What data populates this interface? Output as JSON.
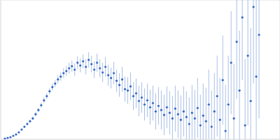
{
  "chart_data": {
    "type": "scatter",
    "color": "#3a6bc4",
    "grid": true,
    "tick_labels": false,
    "xlim": [
      0,
      0.4
    ],
    "ylim": [
      0,
      2
    ],
    "xticks": [
      0.115
    ],
    "yticks": [
      1
    ],
    "x": [
      0.006,
      0.01,
      0.014,
      0.018,
      0.022,
      0.026,
      0.03,
      0.034,
      0.038,
      0.042,
      0.046,
      0.05,
      0.054,
      0.058,
      0.062,
      0.066,
      0.07,
      0.074,
      0.078,
      0.082,
      0.086,
      0.09,
      0.094,
      0.098,
      0.102,
      0.106,
      0.11,
      0.114,
      0.118,
      0.122,
      0.126,
      0.13,
      0.134,
      0.138,
      0.142,
      0.146,
      0.15,
      0.154,
      0.158,
      0.162,
      0.166,
      0.17,
      0.174,
      0.178,
      0.182,
      0.186,
      0.19,
      0.194,
      0.198,
      0.202,
      0.206,
      0.21,
      0.214,
      0.218,
      0.222,
      0.226,
      0.23,
      0.234,
      0.238,
      0.242,
      0.246,
      0.25,
      0.254,
      0.258,
      0.262,
      0.266,
      0.27,
      0.274,
      0.278,
      0.282,
      0.286,
      0.29,
      0.294,
      0.298,
      0.302,
      0.306,
      0.31,
      0.314,
      0.318,
      0.322,
      0.326,
      0.33,
      0.334,
      0.338,
      0.342,
      0.346,
      0.35,
      0.354,
      0.358,
      0.362,
      0.366,
      0.37
    ],
    "values": [
      0.01,
      0.02,
      0.03,
      0.05,
      0.07,
      0.1,
      0.14,
      0.18,
      0.22,
      0.26,
      0.3,
      0.36,
      0.42,
      0.49,
      0.56,
      0.62,
      0.69,
      0.75,
      0.8,
      0.86,
      0.9,
      0.95,
      0.98,
      1.02,
      1.05,
      1.0,
      1.1,
      1.06,
      1.12,
      1.04,
      1.14,
      1.08,
      1.0,
      1.1,
      1.02,
      0.96,
      1.04,
      0.92,
      0.88,
      0.95,
      0.84,
      0.78,
      0.86,
      0.72,
      0.7,
      0.76,
      0.62,
      0.66,
      0.55,
      0.6,
      0.5,
      0.56,
      0.46,
      0.52,
      0.4,
      0.48,
      0.42,
      0.35,
      0.46,
      0.38,
      0.3,
      0.44,
      0.36,
      0.28,
      0.4,
      0.32,
      0.22,
      0.38,
      0.3,
      0.45,
      0.2,
      0.34,
      0.26,
      0.5,
      0.18,
      0.4,
      0.62,
      0.28,
      0.85,
      0.12,
      0.5,
      1.1,
      0.3,
      1.4,
      0.7,
      1.75,
      0.2,
      1.2,
      0.55,
      1.9,
      0.9,
      1.5
    ],
    "errors": [
      0.005,
      0.005,
      0.006,
      0.007,
      0.008,
      0.01,
      0.012,
      0.015,
      0.02,
      0.02,
      0.025,
      0.03,
      0.03,
      0.035,
      0.04,
      0.04,
      0.045,
      0.05,
      0.05,
      0.06,
      0.06,
      0.07,
      0.07,
      0.08,
      0.08,
      0.09,
      0.09,
      0.1,
      0.1,
      0.11,
      0.11,
      0.12,
      0.12,
      0.13,
      0.13,
      0.14,
      0.14,
      0.15,
      0.15,
      0.16,
      0.16,
      0.17,
      0.18,
      0.18,
      0.19,
      0.2,
      0.2,
      0.21,
      0.22,
      0.22,
      0.23,
      0.24,
      0.25,
      0.25,
      0.26,
      0.27,
      0.28,
      0.29,
      0.3,
      0.31,
      0.32,
      0.33,
      0.34,
      0.35,
      0.36,
      0.37,
      0.38,
      0.4,
      0.41,
      0.43,
      0.44,
      0.46,
      0.48,
      0.5,
      0.52,
      0.55,
      0.58,
      0.6,
      0.64,
      0.66,
      0.7,
      0.74,
      0.78,
      0.82,
      0.86,
      0.9,
      0.95,
      1.0,
      1.05,
      1.1,
      1.15,
      1.2
    ]
  }
}
